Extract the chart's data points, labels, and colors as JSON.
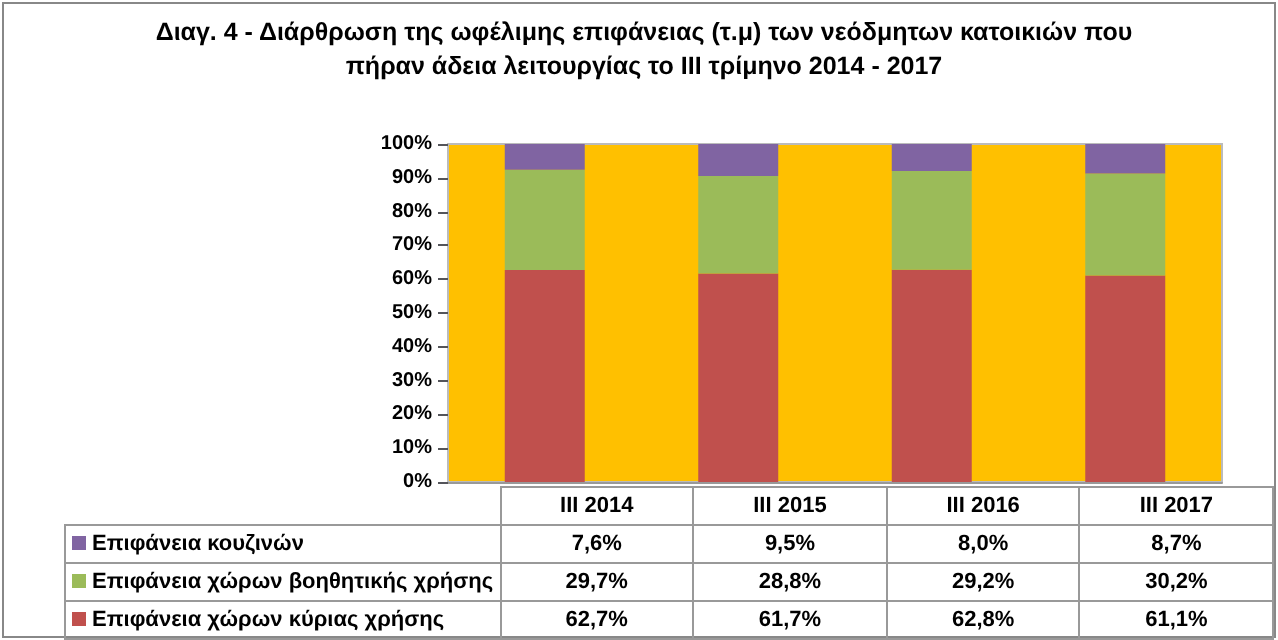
{
  "chart_data": {
    "type": "bar",
    "title": "Διαγ. 4 - Διάρθρωση της ωφέλιμης επιφάνειας (τ.μ) των νεόδμητων κατοικιών που πήραν άδεια λειτουργίας το ΙΙΙ τρίμηνο 2014 - 2017",
    "categories": [
      "III 2014",
      "III 2015",
      "III 2016",
      "III 2017"
    ],
    "stacked": true,
    "series": [
      {
        "name": "Επιφάνεια χώρων κύριας χρήσης",
        "color": "#c0504d",
        "values": [
          62.7,
          61.7,
          62.8,
          61.1
        ],
        "value_labels": [
          "62,7%",
          "61,7%",
          "62,8%",
          "61,1%"
        ]
      },
      {
        "name": "Επιφάνεια χώρων βοηθητικής χρήσης",
        "color": "#9bbb59",
        "values": [
          29.7,
          28.8,
          29.2,
          30.2
        ],
        "value_labels": [
          "29,7%",
          "28,8%",
          "29,2%",
          "30,2%"
        ]
      },
      {
        "name": "Επιφάνεια κουζινών",
        "color": "#8064a2",
        "values": [
          7.6,
          9.5,
          8.0,
          8.7
        ],
        "value_labels": [
          "7,6%",
          "9,5%",
          "8,0%",
          "8,7%"
        ]
      }
    ],
    "ylim": [
      0,
      100
    ],
    "yticks": [
      {
        "value": 0,
        "label": "0%"
      },
      {
        "value": 10,
        "label": "10%"
      },
      {
        "value": 20,
        "label": "20%"
      },
      {
        "value": 30,
        "label": "30%"
      },
      {
        "value": 40,
        "label": "40%"
      },
      {
        "value": 50,
        "label": "50%"
      },
      {
        "value": 60,
        "label": "60%"
      },
      {
        "value": 70,
        "label": "70%"
      },
      {
        "value": 80,
        "label": "80%"
      },
      {
        "value": 90,
        "label": "90%"
      },
      {
        "value": 100,
        "label": "100%"
      }
    ],
    "legend": "bottom"
  }
}
